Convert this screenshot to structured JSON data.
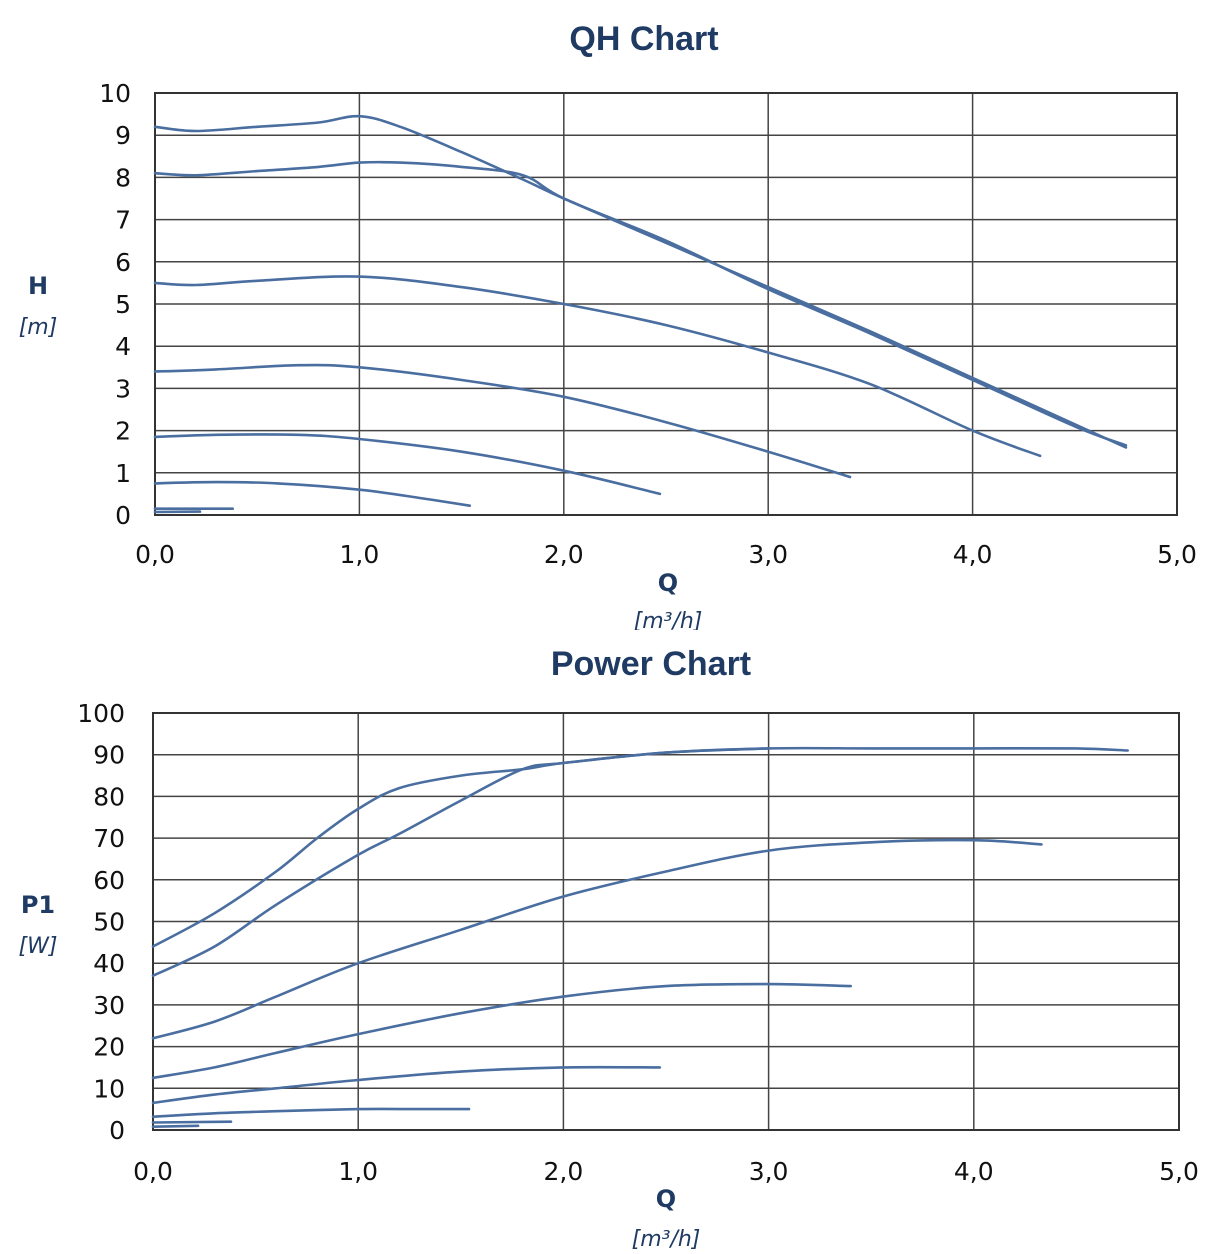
{
  "colors": {
    "series": "#4a6ea0",
    "title": "#1f3b63"
  },
  "chart_data": [
    {
      "type": "line",
      "title": "QH Chart",
      "xlabel": "Q",
      "xunit": "[m³/h]",
      "ylabel": "H",
      "yunit": "[m]",
      "xlim": [
        0,
        5
      ],
      "ylim": [
        0,
        10
      ],
      "xticks": [
        "0,0",
        "1,0",
        "2,0",
        "3,0",
        "4,0",
        "5,0"
      ],
      "yticks": [
        "0",
        "1",
        "2",
        "3",
        "4",
        "5",
        "6",
        "7",
        "8",
        "9",
        "10"
      ],
      "grid": true,
      "series": [
        {
          "x": [
            0,
            0.2,
            0.5,
            0.8,
            1.0,
            1.2,
            1.5,
            1.8,
            2.0,
            2.5,
            3.0,
            3.5,
            4.0,
            4.5,
            4.75
          ],
          "y": [
            9.2,
            9.1,
            9.2,
            9.3,
            9.45,
            9.2,
            8.6,
            7.95,
            7.5,
            6.45,
            5.4,
            4.35,
            3.25,
            2.15,
            1.6
          ]
        },
        {
          "x": [
            0,
            0.2,
            0.5,
            0.8,
            1.0,
            1.2,
            1.5,
            1.8,
            2.0,
            2.5,
            3.0,
            3.5,
            4.0,
            4.5,
            4.75
          ],
          "y": [
            8.1,
            8.05,
            8.15,
            8.25,
            8.35,
            8.35,
            8.25,
            8.05,
            7.5,
            6.5,
            5.35,
            4.3,
            3.2,
            2.1,
            1.65
          ]
        },
        {
          "x": [
            0,
            0.2,
            0.5,
            1.0,
            1.5,
            2.0,
            2.5,
            3.0,
            3.5,
            4.0,
            4.33
          ],
          "y": [
            5.5,
            5.45,
            5.55,
            5.65,
            5.4,
            5.0,
            4.5,
            3.85,
            3.1,
            2.0,
            1.4
          ]
        },
        {
          "x": [
            0,
            0.3,
            0.7,
            1.0,
            1.5,
            2.0,
            2.5,
            3.0,
            3.4
          ],
          "y": [
            3.4,
            3.45,
            3.55,
            3.5,
            3.2,
            2.8,
            2.2,
            1.5,
            0.9
          ]
        },
        {
          "x": [
            0,
            0.3,
            0.7,
            1.0,
            1.5,
            2.0,
            2.47
          ],
          "y": [
            1.85,
            1.9,
            1.9,
            1.8,
            1.5,
            1.05,
            0.5
          ]
        },
        {
          "x": [
            0,
            0.3,
            0.6,
            1.0,
            1.3,
            1.54
          ],
          "y": [
            0.75,
            0.78,
            0.75,
            0.6,
            0.4,
            0.22
          ]
        },
        {
          "x": [
            0,
            0.38
          ],
          "y": [
            0.15,
            0.15
          ]
        },
        {
          "x": [
            0,
            0.22
          ],
          "y": [
            0.07,
            0.08
          ]
        }
      ]
    },
    {
      "type": "line",
      "title": "Power Chart",
      "xlabel": "Q",
      "xunit": "[m³/h]",
      "ylabel": "P1",
      "yunit": "[W]",
      "xlim": [
        0,
        5
      ],
      "ylim": [
        0,
        100
      ],
      "xticks": [
        "0,0",
        "1,0",
        "2,0",
        "3,0",
        "4,0",
        "5,0"
      ],
      "yticks": [
        "0",
        "10",
        "20",
        "30",
        "40",
        "50",
        "60",
        "70",
        "80",
        "90",
        "100"
      ],
      "grid": true,
      "series": [
        {
          "x": [
            0,
            0.3,
            0.6,
            0.8,
            1.0,
            1.2,
            1.5,
            1.8,
            2.0,
            2.5,
            3.0,
            3.5,
            4.0,
            4.5,
            4.75
          ],
          "y": [
            44,
            52,
            62,
            70,
            77,
            82,
            85,
            86.5,
            88,
            90.5,
            91.5,
            91.5,
            91.5,
            91.5,
            91
          ]
        },
        {
          "x": [
            0,
            0.3,
            0.6,
            1.0,
            1.2,
            1.5,
            1.8,
            2.0,
            2.5,
            3.0
          ],
          "y": [
            37,
            44,
            54,
            66,
            71,
            79,
            86.5,
            88,
            90.5,
            91.5
          ]
        },
        {
          "x": [
            0,
            0.3,
            0.6,
            1.0,
            1.5,
            2.0,
            2.5,
            3.0,
            3.5,
            4.0,
            4.33
          ],
          "y": [
            22,
            26,
            32,
            40,
            48,
            56,
            62,
            67,
            69,
            69.5,
            68.5
          ]
        },
        {
          "x": [
            0,
            0.3,
            0.6,
            1.0,
            1.5,
            2.0,
            2.5,
            3.0,
            3.4
          ],
          "y": [
            12.5,
            15,
            18.5,
            23,
            28,
            32,
            34.5,
            35,
            34.5
          ]
        },
        {
          "x": [
            0,
            0.3,
            0.6,
            1.0,
            1.5,
            2.0,
            2.47
          ],
          "y": [
            6.5,
            8.5,
            10,
            12,
            14,
            15,
            15
          ]
        },
        {
          "x": [
            0,
            0.3,
            0.6,
            1.0,
            1.3,
            1.54
          ],
          "y": [
            3.2,
            4,
            4.5,
            5,
            5,
            5
          ]
        },
        {
          "x": [
            0,
            0.38
          ],
          "y": [
            1.8,
            2
          ]
        },
        {
          "x": [
            0,
            0.22
          ],
          "y": [
            0.8,
            1
          ]
        }
      ]
    }
  ]
}
